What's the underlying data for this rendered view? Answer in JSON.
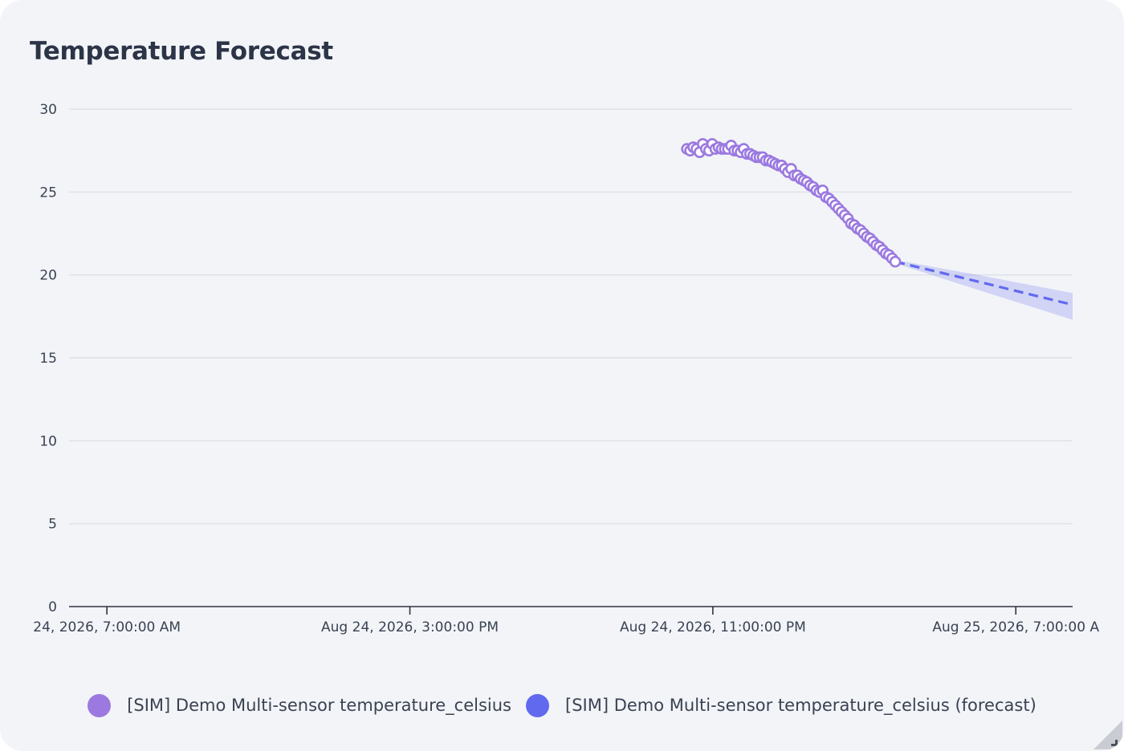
{
  "title": "Temperature Forecast",
  "colors": {
    "observed": "#9b79e0",
    "forecast": "#6169ee",
    "band": "#7c82ee",
    "grid": "#d9dde4",
    "axis": "#2f3442",
    "background": "#f2f4f8"
  },
  "chart_data": {
    "type": "scatter",
    "title": "Temperature Forecast",
    "xlabel": "",
    "ylabel": "",
    "ylim": [
      0,
      30
    ],
    "yticks": [
      0,
      5,
      10,
      15,
      20,
      25,
      30
    ],
    "xlim": [
      "2026-08-24T06:00:00",
      "2026-08-25T08:30:00"
    ],
    "xticks": [
      {
        "t": "2026-08-24T07:00:00",
        "label": "24, 2026, 7:00:00 AM"
      },
      {
        "t": "2026-08-24T15:00:00",
        "label": "Aug 24, 2026, 3:00:00 PM"
      },
      {
        "t": "2026-08-24T23:00:00",
        "label": "Aug 24, 2026, 11:00:00 PM"
      },
      {
        "t": "2026-08-25T07:00:00",
        "label": "Aug 25, 2026, 7:00:00 A"
      }
    ],
    "grid": true,
    "legend_position": "bottom",
    "series": [
      {
        "name": "[SIM] Demo Multi-sensor temperature_celsius",
        "kind": "observed",
        "points": [
          [
            "2026-08-24T22:19:00",
            27.6
          ],
          [
            "2026-08-24T22:24:00",
            27.5
          ],
          [
            "2026-08-24T22:29:00",
            27.7
          ],
          [
            "2026-08-24T22:34:00",
            27.6
          ],
          [
            "2026-08-24T22:39:00",
            27.4
          ],
          [
            "2026-08-24T22:44:00",
            27.9
          ],
          [
            "2026-08-24T22:49:00",
            27.6
          ],
          [
            "2026-08-24T22:54:00",
            27.5
          ],
          [
            "2026-08-24T22:59:00",
            27.9
          ],
          [
            "2026-08-24T23:04:00",
            27.6
          ],
          [
            "2026-08-24T23:09:00",
            27.7
          ],
          [
            "2026-08-24T23:14:00",
            27.6
          ],
          [
            "2026-08-24T23:19:00",
            27.6
          ],
          [
            "2026-08-24T23:24:00",
            27.6
          ],
          [
            "2026-08-24T23:29:00",
            27.8
          ],
          [
            "2026-08-24T23:34:00",
            27.5
          ],
          [
            "2026-08-24T23:39:00",
            27.5
          ],
          [
            "2026-08-24T23:44:00",
            27.4
          ],
          [
            "2026-08-24T23:49:00",
            27.6
          ],
          [
            "2026-08-24T23:54:00",
            27.3
          ],
          [
            "2026-08-24T23:59:00",
            27.3
          ],
          [
            "2026-08-25T00:04:00",
            27.2
          ],
          [
            "2026-08-25T00:09:00",
            27.1
          ],
          [
            "2026-08-25T00:14:00",
            27.1
          ],
          [
            "2026-08-25T00:19:00",
            27.1
          ],
          [
            "2026-08-25T00:24:00",
            26.9
          ],
          [
            "2026-08-25T00:29:00",
            26.9
          ],
          [
            "2026-08-25T00:34:00",
            26.8
          ],
          [
            "2026-08-25T00:39:00",
            26.7
          ],
          [
            "2026-08-25T00:44:00",
            26.6
          ],
          [
            "2026-08-25T00:49:00",
            26.6
          ],
          [
            "2026-08-25T00:54:00",
            26.4
          ],
          [
            "2026-08-25T00:59:00",
            26.2
          ],
          [
            "2026-08-25T01:04:00",
            26.4
          ],
          [
            "2026-08-25T01:09:00",
            26.0
          ],
          [
            "2026-08-25T01:14:00",
            26.0
          ],
          [
            "2026-08-25T01:19:00",
            25.8
          ],
          [
            "2026-08-25T01:24:00",
            25.7
          ],
          [
            "2026-08-25T01:29:00",
            25.6
          ],
          [
            "2026-08-25T01:34:00",
            25.4
          ],
          [
            "2026-08-25T01:39:00",
            25.3
          ],
          [
            "2026-08-25T01:44:00",
            25.1
          ],
          [
            "2026-08-25T01:49:00",
            25.0
          ],
          [
            "2026-08-25T01:54:00",
            25.1
          ],
          [
            "2026-08-25T01:59:00",
            24.7
          ],
          [
            "2026-08-25T02:04:00",
            24.6
          ],
          [
            "2026-08-25T02:09:00",
            24.4
          ],
          [
            "2026-08-25T02:14:00",
            24.2
          ],
          [
            "2026-08-25T02:19:00",
            24.0
          ],
          [
            "2026-08-25T02:24:00",
            23.8
          ],
          [
            "2026-08-25T02:29:00",
            23.6
          ],
          [
            "2026-08-25T02:34:00",
            23.4
          ],
          [
            "2026-08-25T02:39:00",
            23.1
          ],
          [
            "2026-08-25T02:44:00",
            23.0
          ],
          [
            "2026-08-25T02:49:00",
            22.8
          ],
          [
            "2026-08-25T02:54:00",
            22.7
          ],
          [
            "2026-08-25T02:59:00",
            22.5
          ],
          [
            "2026-08-25T03:04:00",
            22.3
          ],
          [
            "2026-08-25T03:09:00",
            22.2
          ],
          [
            "2026-08-25T03:14:00",
            22.0
          ],
          [
            "2026-08-25T03:19:00",
            21.8
          ],
          [
            "2026-08-25T03:24:00",
            21.7
          ],
          [
            "2026-08-25T03:29:00",
            21.5
          ],
          [
            "2026-08-25T03:34:00",
            21.3
          ],
          [
            "2026-08-25T03:39:00",
            21.2
          ],
          [
            "2026-08-25T03:44:00",
            21.0
          ],
          [
            "2026-08-25T03:49:00",
            20.8
          ]
        ]
      },
      {
        "name": "[SIM] Demo Multi-sensor temperature_celsius (forecast)",
        "kind": "forecast",
        "points": [
          [
            "2026-08-25T03:49:00",
            20.8
          ],
          [
            "2026-08-25T06:00:00",
            19.6
          ],
          [
            "2026-08-25T08:30:00",
            18.2
          ]
        ],
        "band_upper": [
          [
            "2026-08-25T03:49:00",
            20.9
          ],
          [
            "2026-08-25T06:00:00",
            20.0
          ],
          [
            "2026-08-25T08:30:00",
            18.9
          ]
        ],
        "band_lower": [
          [
            "2026-08-25T03:49:00",
            20.7
          ],
          [
            "2026-08-25T06:00:00",
            19.1
          ],
          [
            "2026-08-25T08:30:00",
            17.3
          ]
        ]
      }
    ]
  },
  "legend": {
    "items": [
      {
        "label": "[SIM] Demo Multi-sensor temperature_celsius"
      },
      {
        "label": "[SIM] Demo Multi-sensor temperature_celsius (forecast)"
      }
    ]
  }
}
